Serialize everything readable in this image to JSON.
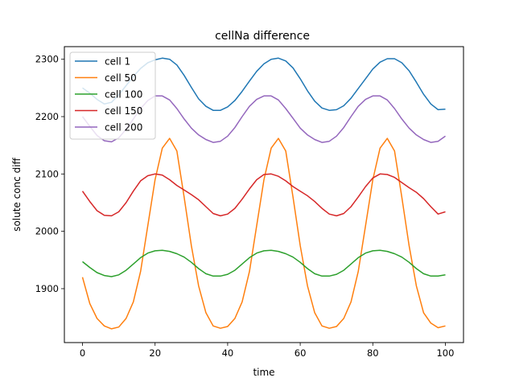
{
  "chart_data": {
    "type": "line",
    "title": "cellNa difference",
    "xlabel": "time",
    "ylabel": "solute conc diff",
    "xlim": [
      -5,
      105
    ],
    "ylim": [
      1806,
      2322
    ],
    "xticks": [
      0,
      20,
      40,
      60,
      80,
      100
    ],
    "yticks": [
      1900,
      2000,
      2100,
      2200,
      2300
    ],
    "grid": false,
    "legend": "upper-left",
    "x": [
      0,
      2,
      4,
      6,
      8,
      10,
      12,
      14,
      16,
      18,
      20,
      22,
      24,
      26,
      28,
      30,
      32,
      34,
      36,
      38,
      40,
      42,
      44,
      46,
      48,
      50,
      52,
      54,
      56,
      58,
      60,
      62,
      64,
      66,
      68,
      70,
      72,
      74,
      76,
      78,
      80,
      82,
      84,
      86,
      88,
      90,
      92,
      94,
      96,
      98,
      100
    ],
    "series": [
      {
        "name": "cell 1",
        "color": "#1f77b4",
        "values": [
          2250,
          2241,
          2230,
          2222,
          2225,
          2238,
          2254,
          2270,
          2284,
          2294,
          2299,
          2302,
          2300,
          2290,
          2272,
          2251,
          2231,
          2218,
          2211,
          2211,
          2217,
          2228,
          2244,
          2262,
          2279,
          2292,
          2300,
          2302,
          2297,
          2285,
          2266,
          2245,
          2227,
          2215,
          2211,
          2212,
          2219,
          2232,
          2249,
          2266,
          2283,
          2295,
          2301,
          2301,
          2294,
          2280,
          2260,
          2239,
          2222,
          2212,
          2213
        ]
      },
      {
        "name": "cell 50",
        "color": "#ff7f0e",
        "values": [
          1920,
          1874,
          1848,
          1835,
          1830,
          1833,
          1848,
          1877,
          1930,
          2010,
          2090,
          2145,
          2162,
          2140,
          2060,
          1975,
          1905,
          1858,
          1835,
          1831,
          1834,
          1848,
          1877,
          1930,
          2010,
          2090,
          2145,
          2162,
          2140,
          2060,
          1975,
          1905,
          1858,
          1835,
          1831,
          1834,
          1848,
          1877,
          1930,
          2010,
          2090,
          2145,
          2162,
          2140,
          2060,
          1975,
          1905,
          1858,
          1840,
          1832,
          1835
        ]
      },
      {
        "name": "cell 100",
        "color": "#2ca02c",
        "values": [
          1947,
          1937,
          1928,
          1923,
          1921,
          1924,
          1932,
          1943,
          1954,
          1962,
          1966,
          1967,
          1965,
          1961,
          1955,
          1946,
          1935,
          1926,
          1922,
          1922,
          1925,
          1932,
          1943,
          1954,
          1962,
          1966,
          1967,
          1965,
          1961,
          1955,
          1946,
          1935,
          1926,
          1922,
          1922,
          1925,
          1932,
          1943,
          1954,
          1962,
          1966,
          1967,
          1965,
          1961,
          1955,
          1946,
          1935,
          1926,
          1922,
          1922,
          1924
        ]
      },
      {
        "name": "cell 150",
        "color": "#d62728",
        "values": [
          2070,
          2052,
          2036,
          2028,
          2027,
          2034,
          2050,
          2070,
          2088,
          2097,
          2100,
          2098,
          2090,
          2080,
          2072,
          2064,
          2055,
          2043,
          2031,
          2027,
          2030,
          2040,
          2056,
          2074,
          2090,
          2099,
          2100,
          2096,
          2088,
          2078,
          2070,
          2062,
          2052,
          2040,
          2030,
          2027,
          2031,
          2043,
          2060,
          2078,
          2093,
          2100,
          2099,
          2094,
          2085,
          2076,
          2068,
          2057,
          2043,
          2030,
          2034
        ]
      },
      {
        "name": "cell 200",
        "color": "#9467bd",
        "values": [
          2200,
          2183,
          2167,
          2158,
          2156,
          2163,
          2178,
          2196,
          2214,
          2228,
          2236,
          2236,
          2229,
          2214,
          2196,
          2180,
          2168,
          2160,
          2155,
          2157,
          2166,
          2181,
          2200,
          2218,
          2230,
          2236,
          2236,
          2229,
          2214,
          2197,
          2180,
          2168,
          2160,
          2155,
          2157,
          2166,
          2181,
          2200,
          2218,
          2230,
          2236,
          2236,
          2229,
          2214,
          2196,
          2180,
          2168,
          2160,
          2155,
          2157,
          2166
        ]
      }
    ]
  }
}
